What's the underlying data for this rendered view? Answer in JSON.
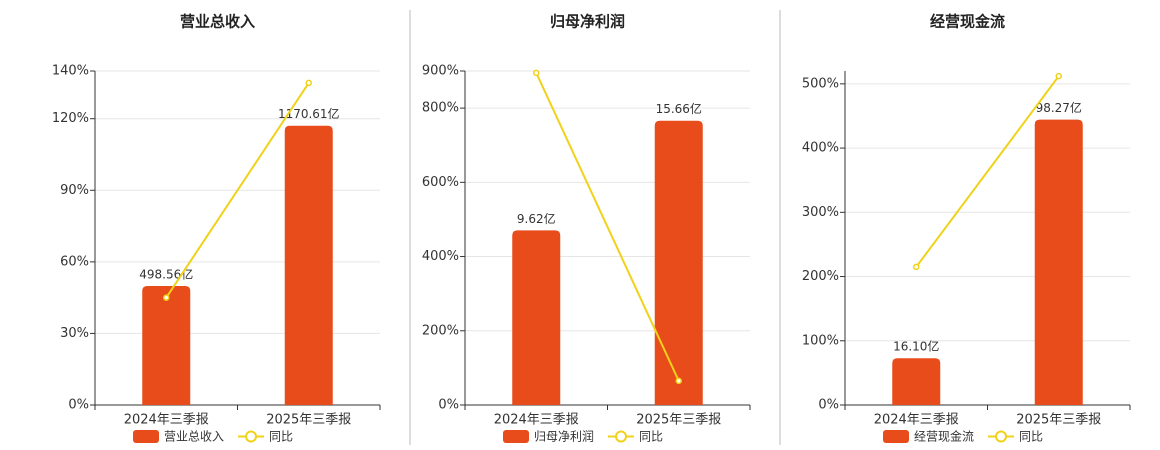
{
  "chart_data": [
    {
      "type": "combo",
      "title": "营业总收入",
      "categories": [
        "2024年三季报",
        "2025年三季报"
      ],
      "series": [
        {
          "name": "营业总收入",
          "type": "bar",
          "axis": "y2",
          "color": "#e84c1a",
          "values": [
            498.56,
            1170.61
          ],
          "value_labels": [
            "498.56亿",
            "1170.61亿"
          ]
        },
        {
          "name": "同比",
          "type": "line",
          "color": "#f0d21a",
          "values": [
            45,
            135
          ]
        }
      ],
      "ylim": [
        0,
        140
      ],
      "yticks": [
        {
          "value": 0,
          "label": "0%"
        },
        {
          "value": 30,
          "label": "30%"
        },
        {
          "value": 60,
          "label": "60%"
        },
        {
          "value": 90,
          "label": "90%"
        },
        {
          "value": 120,
          "label": "120%"
        },
        {
          "value": 140,
          "label": "140%"
        }
      ],
      "y2lim": [
        0,
        1400
      ],
      "grid": true
    },
    {
      "type": "combo",
      "title": "归母净利润",
      "categories": [
        "2024年三季报",
        "2025年三季报"
      ],
      "series": [
        {
          "name": "归母净利润",
          "type": "bar",
          "axis": "y2",
          "color": "#e84c1a",
          "values": [
            9.62,
            15.66
          ],
          "value_labels": [
            "9.62亿",
            "15.66亿"
          ]
        },
        {
          "name": "同比",
          "type": "line",
          "color": "#f0d21a",
          "values": [
            895,
            65
          ]
        }
      ],
      "ylim": [
        0,
        900
      ],
      "yticks": [
        {
          "value": 0,
          "label": "0%"
        },
        {
          "value": 200,
          "label": "200%"
        },
        {
          "value": 400,
          "label": "400%"
        },
        {
          "value": 600,
          "label": "600%"
        },
        {
          "value": 800,
          "label": "800%"
        },
        {
          "value": 900,
          "label": "900%"
        }
      ],
      "y2lim": [
        0,
        18.4
      ],
      "grid": true
    },
    {
      "type": "combo",
      "title": "经营现金流",
      "categories": [
        "2024年三季报",
        "2025年三季报"
      ],
      "series": [
        {
          "name": "经营现金流",
          "type": "bar",
          "axis": "y2",
          "color": "#e84c1a",
          "values": [
            16.1,
            98.27
          ],
          "value_labels": [
            "16.10亿",
            "98.27亿"
          ]
        },
        {
          "name": "同比",
          "type": "line",
          "color": "#f0d21a",
          "values": [
            215,
            512
          ]
        }
      ],
      "ylim": [
        0,
        520
      ],
      "yticks": [
        {
          "value": 0,
          "label": "0%"
        },
        {
          "value": 100,
          "label": "100%"
        },
        {
          "value": 200,
          "label": "200%"
        },
        {
          "value": 300,
          "label": "300%"
        },
        {
          "value": 400,
          "label": "400%"
        },
        {
          "value": 500,
          "label": "500%"
        }
      ],
      "y2lim": [
        0,
        115
      ],
      "grid": true
    }
  ]
}
